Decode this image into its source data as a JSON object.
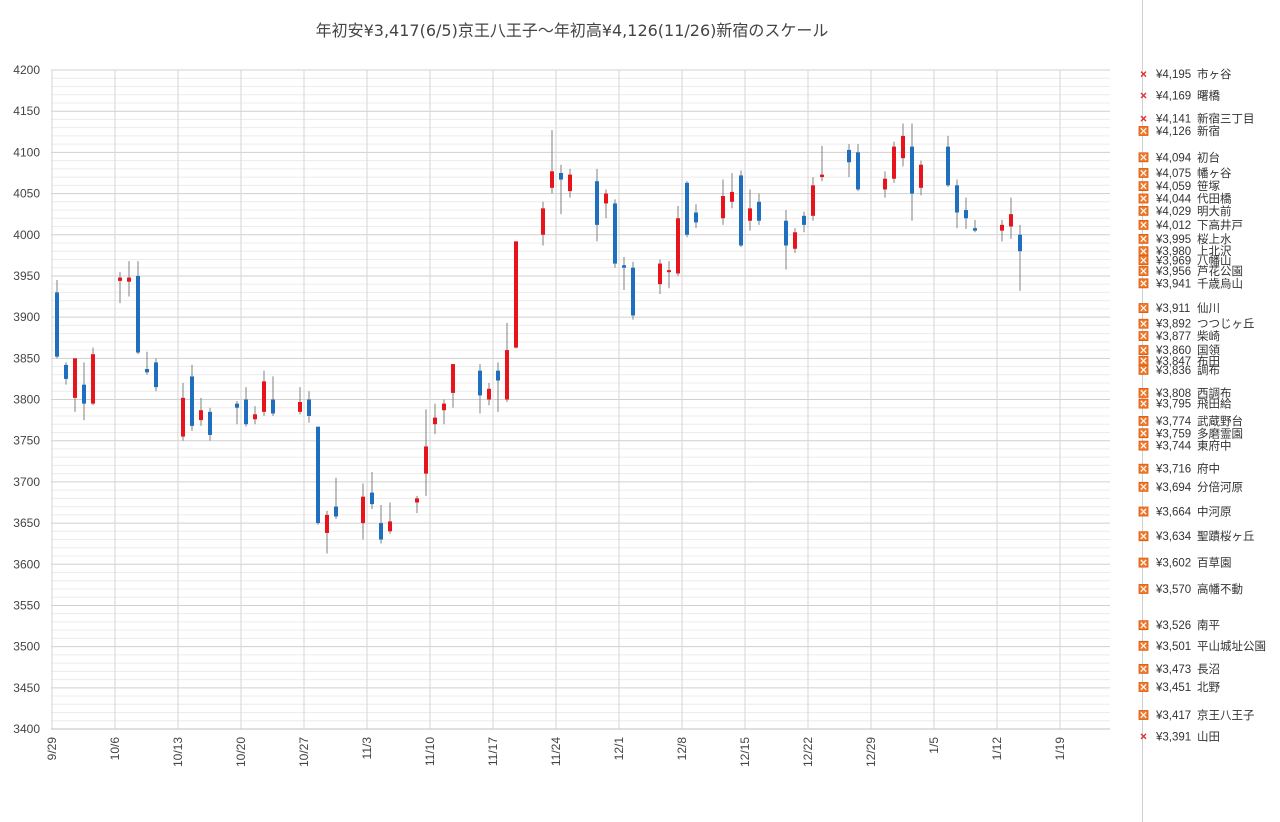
{
  "chart_data": {
    "type": "candlestick",
    "title": "年初安¥3,417(6/5)京王八王子～年初高¥4,126(11/26)新宿のスケール",
    "ylim": [
      3400,
      4200
    ],
    "yticks": [
      4200,
      4150,
      4100,
      4050,
      4000,
      3950,
      3900,
      3850,
      3800,
      3750,
      3700,
      3650,
      3600,
      3550,
      3500,
      3450,
      3400
    ],
    "grid": true,
    "x_tick_labels": [
      "9/29",
      "10/6",
      "10/13",
      "10/20",
      "10/27",
      "11/3",
      "11/10",
      "11/17",
      "11/24",
      "12/1",
      "12/8",
      "12/15",
      "12/22",
      "12/29",
      "1/5",
      "1/12",
      "1/19"
    ],
    "total_slots": 117,
    "colors": {
      "up": "#e8141c",
      "down": "#1f6fc0",
      "wick": "#808080",
      "grid": "#d9d9d9"
    },
    "candles": [
      {
        "i": 0,
        "o": 3930,
        "c": 3852,
        "h": 3945,
        "l": 3850
      },
      {
        "i": 1,
        "o": 3842,
        "c": 3825,
        "h": 3845,
        "l": 3818
      },
      {
        "i": 2,
        "o": 3802,
        "c": 3850,
        "h": 3850,
        "l": 3785
      },
      {
        "i": 3,
        "o": 3818,
        "c": 3795,
        "h": 3845,
        "l": 3775
      },
      {
        "i": 4,
        "o": 3795,
        "c": 3855,
        "h": 3863,
        "l": 3793
      },
      {
        "i": 7,
        "o": 3944,
        "c": 3948,
        "h": 3955,
        "l": 3917
      },
      {
        "i": 8,
        "o": 3943,
        "c": 3948,
        "h": 3968,
        "l": 3925
      },
      {
        "i": 9,
        "o": 3950,
        "c": 3857,
        "h": 3968,
        "l": 3855
      },
      {
        "i": 10,
        "o": 3837,
        "c": 3833,
        "h": 3858,
        "l": 3830
      },
      {
        "i": 11,
        "o": 3845,
        "c": 3815,
        "h": 3850,
        "l": 3810
      },
      {
        "i": 14,
        "o": 3755,
        "c": 3802,
        "h": 3820,
        "l": 3750
      },
      {
        "i": 15,
        "o": 3828,
        "c": 3768,
        "h": 3842,
        "l": 3762
      },
      {
        "i": 16,
        "o": 3775,
        "c": 3787,
        "h": 3802,
        "l": 3768
      },
      {
        "i": 17,
        "o": 3785,
        "c": 3757,
        "h": 3790,
        "l": 3750
      },
      {
        "i": 20,
        "o": 3795,
        "c": 3790,
        "h": 3798,
        "l": 3770
      },
      {
        "i": 21,
        "o": 3800,
        "c": 3770,
        "h": 3815,
        "l": 3767
      },
      {
        "i": 22,
        "o": 3776,
        "c": 3782,
        "h": 3792,
        "l": 3770
      },
      {
        "i": 23,
        "o": 3785,
        "c": 3822,
        "h": 3835,
        "l": 3780
      },
      {
        "i": 24,
        "o": 3800,
        "c": 3783,
        "h": 3828,
        "l": 3780
      },
      {
        "i": 27,
        "o": 3785,
        "c": 3797,
        "h": 3815,
        "l": 3782
      },
      {
        "i": 28,
        "o": 3800,
        "c": 3780,
        "h": 3810,
        "l": 3772
      },
      {
        "i": 29,
        "o": 3767,
        "c": 3650,
        "h": 3767,
        "l": 3648
      },
      {
        "i": 30,
        "o": 3638,
        "c": 3660,
        "h": 3665,
        "l": 3613
      },
      {
        "i": 31,
        "o": 3670,
        "c": 3658,
        "h": 3705,
        "l": 3655
      },
      {
        "i": 34,
        "o": 3650,
        "c": 3682,
        "h": 3698,
        "l": 3630
      },
      {
        "i": 35,
        "o": 3687,
        "c": 3673,
        "h": 3712,
        "l": 3667
      },
      {
        "i": 36,
        "o": 3650,
        "c": 3630,
        "h": 3672,
        "l": 3625
      },
      {
        "i": 37,
        "o": 3640,
        "c": 3652,
        "h": 3675,
        "l": 3637
      },
      {
        "i": 40,
        "o": 3675,
        "c": 3680,
        "h": 3683,
        "l": 3662
      },
      {
        "i": 41,
        "o": 3710,
        "c": 3743,
        "h": 3788,
        "l": 3683
      },
      {
        "i": 42,
        "o": 3770,
        "c": 3778,
        "h": 3795,
        "l": 3758
      },
      {
        "i": 43,
        "o": 3787,
        "c": 3795,
        "h": 3800,
        "l": 3770
      },
      {
        "i": 44,
        "o": 3808,
        "c": 3843,
        "h": 3843,
        "l": 3790
      },
      {
        "i": 47,
        "o": 3835,
        "c": 3805,
        "h": 3843,
        "l": 3783
      },
      {
        "i": 48,
        "o": 3800,
        "c": 3813,
        "h": 3820,
        "l": 3793
      },
      {
        "i": 49,
        "o": 3835,
        "c": 3823,
        "h": 3845,
        "l": 3785
      },
      {
        "i": 50,
        "o": 3800,
        "c": 3860,
        "h": 3893,
        "l": 3797
      },
      {
        "i": 51,
        "o": 3863,
        "c": 3992,
        "h": 3992,
        "l": 3862
      },
      {
        "i": 54,
        "o": 4000,
        "c": 4032,
        "h": 4040,
        "l": 3987
      },
      {
        "i": 55,
        "o": 4057,
        "c": 4077,
        "h": 4127,
        "l": 4050
      },
      {
        "i": 56,
        "o": 4075,
        "c": 4067,
        "h": 4085,
        "l": 4025
      },
      {
        "i": 57,
        "o": 4053,
        "c": 4073,
        "h": 4080,
        "l": 4045
      },
      {
        "i": 60,
        "o": 4065,
        "c": 4012,
        "h": 4080,
        "l": 3992
      },
      {
        "i": 61,
        "o": 4038,
        "c": 4050,
        "h": 4055,
        "l": 4020
      },
      {
        "i": 62,
        "o": 4038,
        "c": 3965,
        "h": 4043,
        "l": 3960
      },
      {
        "i": 63,
        "o": 3963,
        "c": 3960,
        "h": 3973,
        "l": 3933
      },
      {
        "i": 64,
        "o": 3960,
        "c": 3902,
        "h": 3967,
        "l": 3897
      },
      {
        "i": 67,
        "o": 3940,
        "c": 3965,
        "h": 3970,
        "l": 3928
      },
      {
        "i": 68,
        "o": 3955,
        "c": 3957,
        "h": 3968,
        "l": 3935
      },
      {
        "i": 69,
        "o": 3953,
        "c": 4020,
        "h": 4035,
        "l": 3950
      },
      {
        "i": 70,
        "o": 4063,
        "c": 4000,
        "h": 4065,
        "l": 3997
      },
      {
        "i": 71,
        "o": 4027,
        "c": 4015,
        "h": 4037,
        "l": 4008
      },
      {
        "i": 74,
        "o": 4020,
        "c": 4047,
        "h": 4067,
        "l": 4012
      },
      {
        "i": 75,
        "o": 4040,
        "c": 4052,
        "h": 4075,
        "l": 4032
      },
      {
        "i": 76,
        "o": 4072,
        "c": 3987,
        "h": 4078,
        "l": 3985
      },
      {
        "i": 77,
        "o": 4017,
        "c": 4032,
        "h": 4055,
        "l": 4005
      },
      {
        "i": 78,
        "o": 4040,
        "c": 4017,
        "h": 4050,
        "l": 4012
      },
      {
        "i": 81,
        "o": 4017,
        "c": 3987,
        "h": 4030,
        "l": 3958
      },
      {
        "i": 82,
        "o": 3983,
        "c": 4003,
        "h": 4008,
        "l": 3978
      },
      {
        "i": 83,
        "o": 4023,
        "c": 4012,
        "h": 4028,
        "l": 4003
      },
      {
        "i": 84,
        "o": 4023,
        "c": 4060,
        "h": 4070,
        "l": 4017
      },
      {
        "i": 85,
        "o": 4070,
        "c": 4073,
        "h": 4108,
        "l": 4065
      },
      {
        "i": 88,
        "o": 4103,
        "c": 4088,
        "h": 4110,
        "l": 4070
      },
      {
        "i": 89,
        "o": 4100,
        "c": 4055,
        "h": 4110,
        "l": 4053
      },
      {
        "i": 92,
        "o": 4055,
        "c": 4068,
        "h": 4077,
        "l": 4045
      },
      {
        "i": 93,
        "o": 4068,
        "c": 4107,
        "h": 4113,
        "l": 4063
      },
      {
        "i": 94,
        "o": 4093,
        "c": 4120,
        "h": 4135,
        "l": 4083
      },
      {
        "i": 95,
        "o": 4107,
        "c": 4050,
        "h": 4135,
        "l": 4017
      },
      {
        "i": 96,
        "o": 4057,
        "c": 4085,
        "h": 4090,
        "l": 4048
      },
      {
        "i": 99,
        "o": 4107,
        "c": 4060,
        "h": 4120,
        "l": 4058
      },
      {
        "i": 100,
        "o": 4060,
        "c": 4027,
        "h": 4067,
        "l": 4008
      },
      {
        "i": 101,
        "o": 4030,
        "c": 4020,
        "h": 4045,
        "l": 4007
      },
      {
        "i": 102,
        "o": 4008,
        "c": 4005,
        "h": 4018,
        "l": 4003
      },
      {
        "i": 105,
        "o": 4005,
        "c": 4012,
        "h": 4018,
        "l": 3992
      },
      {
        "i": 106,
        "o": 4010,
        "c": 4025,
        "h": 4045,
        "l": 3995
      },
      {
        "i": 107,
        "o": 4000,
        "c": 3980,
        "h": 4012,
        "l": 3932
      }
    ]
  },
  "legend": [
    {
      "price": "¥4,195",
      "name": "市ヶ谷",
      "v": 4195,
      "marker": "cross"
    },
    {
      "price": "¥4,169",
      "name": "曙橋",
      "v": 4169,
      "marker": "cross"
    },
    {
      "price": "¥4,141",
      "name": "新宿三丁目",
      "v": 4141,
      "marker": "cross"
    },
    {
      "price": "¥4,126",
      "name": "新宿",
      "v": 4126,
      "marker": "box"
    },
    {
      "price": "¥4,094",
      "name": "初台",
      "v": 4094,
      "marker": "box"
    },
    {
      "price": "¥4,075",
      "name": "幡ヶ谷",
      "v": 4075,
      "marker": "box"
    },
    {
      "price": "¥4,059",
      "name": "笹塚",
      "v": 4059,
      "marker": "box"
    },
    {
      "price": "¥4,044",
      "name": "代田橋",
      "v": 4044,
      "marker": "box"
    },
    {
      "price": "¥4,029",
      "name": "明大前",
      "v": 4029,
      "marker": "box"
    },
    {
      "price": "¥4,012",
      "name": "下高井戸",
      "v": 4012,
      "marker": "box"
    },
    {
      "price": "¥3,995",
      "name": "桜上水",
      "v": 3995,
      "marker": "box"
    },
    {
      "price": "¥3,980",
      "name": "上北沢",
      "v": 3980,
      "marker": "box"
    },
    {
      "price": "¥3,969",
      "name": "八幡山",
      "v": 3969,
      "marker": "box"
    },
    {
      "price": "¥3,956",
      "name": "芦花公園",
      "v": 3956,
      "marker": "box"
    },
    {
      "price": "¥3,941",
      "name": "千歳烏山",
      "v": 3941,
      "marker": "box"
    },
    {
      "price": "¥3,911",
      "name": "仙川",
      "v": 3911,
      "marker": "box"
    },
    {
      "price": "¥3,892",
      "name": "つつじヶ丘",
      "v": 3892,
      "marker": "box"
    },
    {
      "price": "¥3,877",
      "name": "柴崎",
      "v": 3877,
      "marker": "box"
    },
    {
      "price": "¥3,860",
      "name": "国領",
      "v": 3860,
      "marker": "box"
    },
    {
      "price": "¥3,847",
      "name": "布田",
      "v": 3847,
      "marker": "box"
    },
    {
      "price": "¥3,836",
      "name": "調布",
      "v": 3836,
      "marker": "box"
    },
    {
      "price": "¥3,808",
      "name": "西調布",
      "v": 3808,
      "marker": "box"
    },
    {
      "price": "¥3,795",
      "name": "飛田給",
      "v": 3795,
      "marker": "box"
    },
    {
      "price": "¥3,774",
      "name": "武蔵野台",
      "v": 3774,
      "marker": "box"
    },
    {
      "price": "¥3,759",
      "name": "多磨霊園",
      "v": 3759,
      "marker": "box"
    },
    {
      "price": "¥3,744",
      "name": "東府中",
      "v": 3744,
      "marker": "box"
    },
    {
      "price": "¥3,716",
      "name": "府中",
      "v": 3716,
      "marker": "box"
    },
    {
      "price": "¥3,694",
      "name": "分倍河原",
      "v": 3694,
      "marker": "box"
    },
    {
      "price": "¥3,664",
      "name": "中河原",
      "v": 3664,
      "marker": "box"
    },
    {
      "price": "¥3,634",
      "name": "聖蹟桜ヶ丘",
      "v": 3634,
      "marker": "box"
    },
    {
      "price": "¥3,602",
      "name": "百草園",
      "v": 3602,
      "marker": "box"
    },
    {
      "price": "¥3,570",
      "name": "高幡不動",
      "v": 3570,
      "marker": "box"
    },
    {
      "price": "¥3,526",
      "name": "南平",
      "v": 3526,
      "marker": "box"
    },
    {
      "price": "¥3,501",
      "name": "平山城址公園",
      "v": 3501,
      "marker": "box"
    },
    {
      "price": "¥3,473",
      "name": "長沼",
      "v": 3473,
      "marker": "box"
    },
    {
      "price": "¥3,451",
      "name": "北野",
      "v": 3451,
      "marker": "box"
    },
    {
      "price": "¥3,417",
      "name": "京王八王子",
      "v": 3417,
      "marker": "box"
    },
    {
      "price": "¥3,391",
      "name": "山田",
      "v": 3391,
      "marker": "cross"
    }
  ]
}
